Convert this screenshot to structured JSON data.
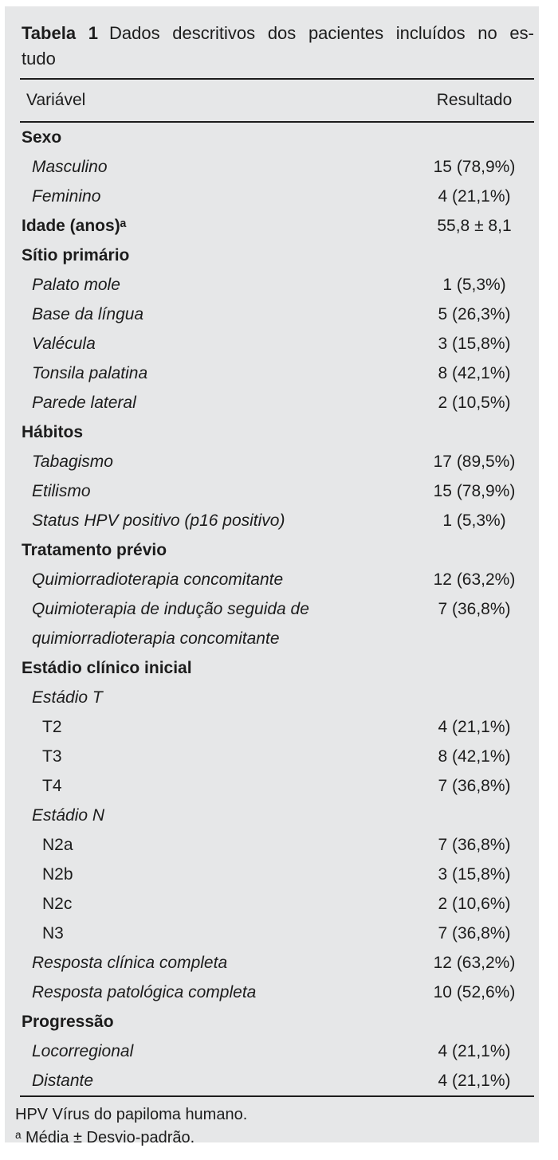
{
  "caption": {
    "label": "Tabela 1",
    "line1": "Dados descritivos dos pacientes incluídos no es-",
    "line2": "tudo"
  },
  "columns": {
    "variable": "Variável",
    "result": "Resultado"
  },
  "table": {
    "rows": [
      {
        "type": "group",
        "label": "Sexo",
        "value": ""
      },
      {
        "type": "item1",
        "label": "Masculino",
        "value": "15 (78,9%)"
      },
      {
        "type": "item1",
        "label": "Feminino",
        "value": "4 (21,1%)"
      },
      {
        "type": "group",
        "label": "Idade (anos)ᵃ",
        "value": "55,8 ± 8,1"
      },
      {
        "type": "group",
        "label": "Sítio primário",
        "value": ""
      },
      {
        "type": "item1",
        "label": "Palato mole",
        "value": "1 (5,3%)"
      },
      {
        "type": "item1",
        "label": "Base da língua",
        "value": "5 (26,3%)"
      },
      {
        "type": "item1",
        "label": "Valécula",
        "value": "3 (15,8%)"
      },
      {
        "type": "item1",
        "label": "Tonsila palatina",
        "value": "8 (42,1%)"
      },
      {
        "type": "item1",
        "label": "Parede lateral",
        "value": "2 (10,5%)"
      },
      {
        "type": "group",
        "label": "Hábitos",
        "value": ""
      },
      {
        "type": "item1",
        "label": "Tabagismo",
        "value": "17 (89,5%)"
      },
      {
        "type": "item1",
        "label": "Etilismo",
        "value": "15 (78,9%)"
      },
      {
        "type": "item1",
        "label": "Status HPV positivo (p16 positivo)",
        "value": "1 (5,3%)"
      },
      {
        "type": "group",
        "label": "Tratamento prévio",
        "value": ""
      },
      {
        "type": "item1",
        "label": "Quimiorradioterapia concomitante",
        "value": "12 (63,2%)"
      },
      {
        "type": "item1",
        "label": "Quimioterapia de indução seguida de quimiorradioterapia concomitante",
        "value": "7 (36,8%)"
      },
      {
        "type": "group",
        "label": "Estádio clínico inicial",
        "value": ""
      },
      {
        "type": "item1",
        "label": "Estádio T",
        "value": ""
      },
      {
        "type": "item2",
        "label": "T2",
        "value": "4 (21,1%)"
      },
      {
        "type": "item2",
        "label": "T3",
        "value": "8 (42,1%)"
      },
      {
        "type": "item2",
        "label": "T4",
        "value": "7 (36,8%)"
      },
      {
        "type": "item1",
        "label": "Estádio N",
        "value": ""
      },
      {
        "type": "item2",
        "label": "N2a",
        "value": "7 (36,8%)"
      },
      {
        "type": "item2",
        "label": "N2b",
        "value": "3 (15,8%)"
      },
      {
        "type": "item2",
        "label": "N2c",
        "value": "2 (10,6%)"
      },
      {
        "type": "item2",
        "label": "N3",
        "value": "7 (36,8%)"
      },
      {
        "type": "item1",
        "label": "Resposta clínica completa",
        "value": "12 (63,2%)"
      },
      {
        "type": "item1",
        "label": "Resposta patológica completa",
        "value": "10 (52,6%)"
      },
      {
        "type": "group",
        "label": "Progressão",
        "value": ""
      },
      {
        "type": "item1",
        "label": "Locorregional",
        "value": "4 (21,1%)"
      },
      {
        "type": "item1",
        "label": "Distante",
        "value": "4 (21,1%)"
      }
    ]
  },
  "footnotes": {
    "abbrev": "HPV Vírus do papiloma humano.",
    "note_a": "ᵃ Média ± Desvio-padrão."
  },
  "colors": {
    "panel_bg": "#e6e7e8",
    "text": "#1c1c1c",
    "rule": "#1c1c1c"
  }
}
